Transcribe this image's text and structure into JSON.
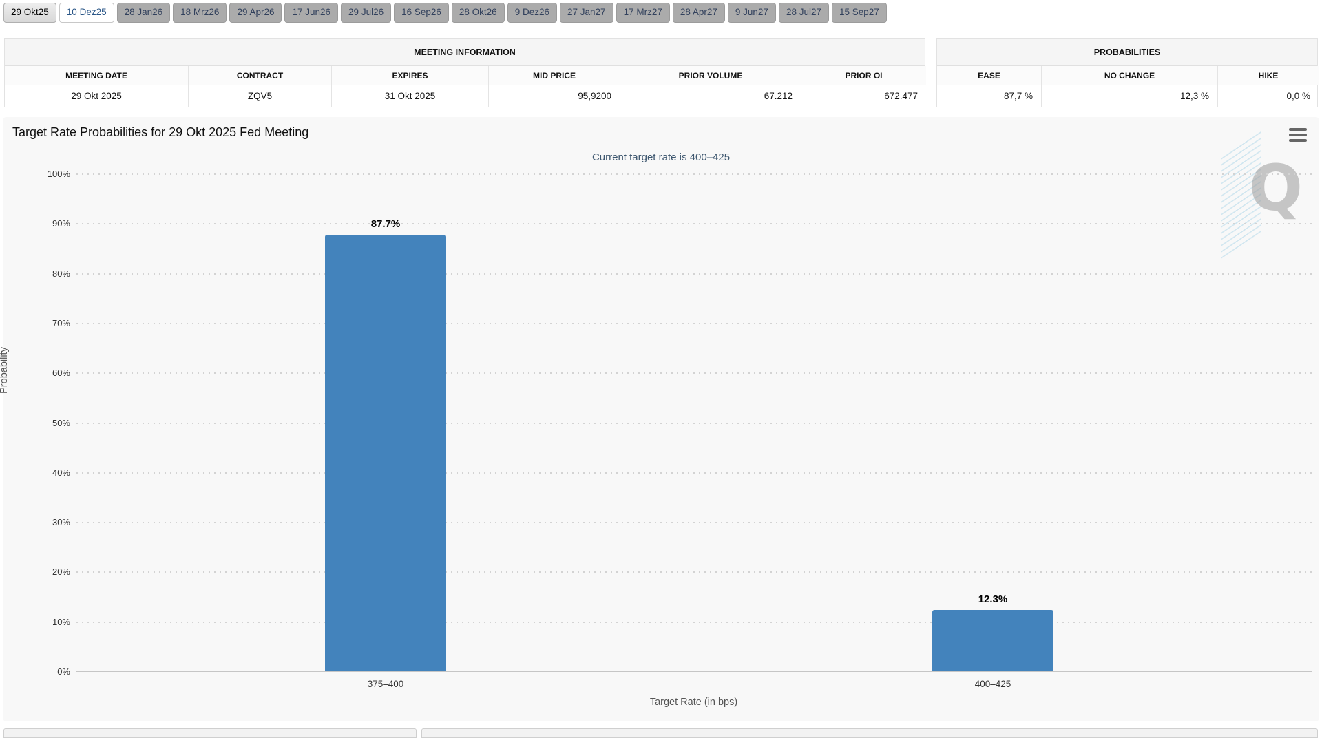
{
  "tabs": {
    "items": [
      {
        "label": "29 Okt25",
        "state": "selected"
      },
      {
        "label": "10 Dez25",
        "state": "open"
      },
      {
        "label": "28 Jan26",
        "state": "default"
      },
      {
        "label": "18 Mrz26",
        "state": "default"
      },
      {
        "label": "29 Apr26",
        "state": "default"
      },
      {
        "label": "17 Jun26",
        "state": "default"
      },
      {
        "label": "29 Jul26",
        "state": "default"
      },
      {
        "label": "16 Sep26",
        "state": "default"
      },
      {
        "label": "28 Okt26",
        "state": "default"
      },
      {
        "label": "9 Dez26",
        "state": "default"
      },
      {
        "label": "27 Jan27",
        "state": "default"
      },
      {
        "label": "17 Mrz27",
        "state": "default"
      },
      {
        "label": "28 Apr27",
        "state": "default"
      },
      {
        "label": "9 Jun27",
        "state": "default"
      },
      {
        "label": "28 Jul27",
        "state": "default"
      },
      {
        "label": "15 Sep27",
        "state": "default"
      }
    ]
  },
  "meeting_information": {
    "title": "MEETING INFORMATION",
    "columns": [
      "MEETING DATE",
      "CONTRACT",
      "EXPIRES",
      "MID PRICE",
      "PRIOR VOLUME",
      "PRIOR OI"
    ],
    "values": [
      "29 Okt 2025",
      "ZQV5",
      "31 Okt 2025",
      "95,9200",
      "67.212",
      "672.477"
    ]
  },
  "probabilities": {
    "title": "PROBABILITIES",
    "columns": [
      "EASE",
      "NO CHANGE",
      "HIKE"
    ],
    "values": [
      "87,7 %",
      "12,3 %",
      "0,0 %"
    ]
  },
  "chart": {
    "title": "Target Rate Probabilities for 29 Okt 2025 Fed Meeting",
    "subtitle": "Current target rate is 400–425",
    "menu_icon": "hamburger-icon",
    "watermark_letter": "Q"
  },
  "chart_data": {
    "type": "bar",
    "title": "Target Rate Probabilities for 29 Okt 2025 Fed Meeting",
    "subtitle": "Current target rate is 400–425",
    "categories": [
      "375–400",
      "400–425"
    ],
    "values": [
      87.7,
      12.3
    ],
    "data_labels": [
      "87.7%",
      "12.3%"
    ],
    "xlabel": "Target Rate (in bps)",
    "ylabel": "Probability",
    "ylim": [
      0,
      100
    ],
    "yticks": [
      "0%",
      "10%",
      "20%",
      "30%",
      "40%",
      "50%",
      "60%",
      "70%",
      "80%",
      "90%",
      "100%"
    ],
    "grid": "dotted-horizontal",
    "legend": "none",
    "bar_color": "#4383bc"
  },
  "colors": {
    "bar": "#4383bc",
    "subtitle_text": "#3e576f",
    "chart_background": "#f8f8f8",
    "tab_default_background": "#ababab"
  }
}
